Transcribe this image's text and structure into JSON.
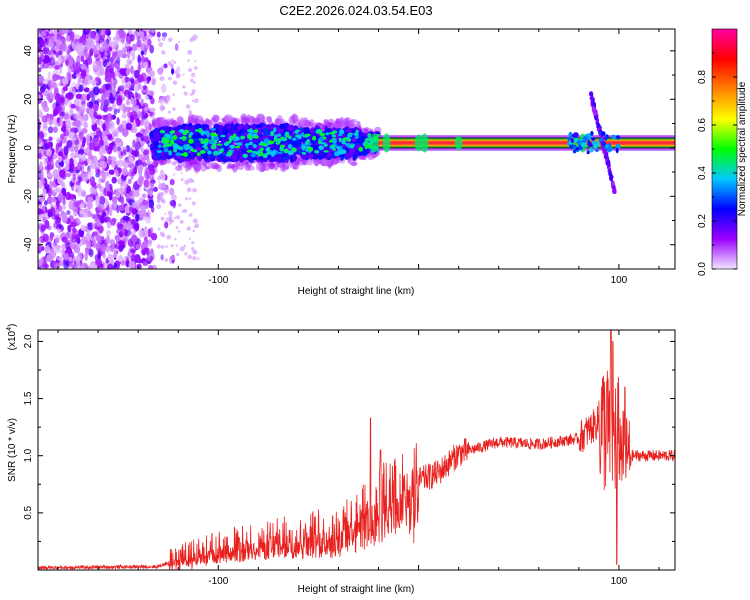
{
  "figure": {
    "title": "C2E2.2026.024.03.54.E03"
  },
  "colors": {
    "snr_line": "#e8211e",
    "trace_band": "#15b23a",
    "trace_core": "#ff2a3a",
    "axis": "#000000"
  },
  "chart_data": [
    {
      "type": "heatmap",
      "name": "spectrogram",
      "title": "C2E2.2026.024.03.54.E03",
      "xlabel": "Height of straight line (km)",
      "ylabel": "Frequency (Hz)",
      "xlim": [
        -190,
        128
      ],
      "ylim": [
        -50,
        49
      ],
      "xticks": [
        -100,
        0,
        100
      ],
      "xtick_labels": [
        "-100",
        "",
        "100"
      ],
      "yticks": [
        -40,
        -20,
        0,
        20,
        40
      ],
      "ytick_labels": [
        "-40",
        "-20",
        "0",
        "20",
        "40"
      ],
      "colorbar": {
        "label": "Normalized spectral amplitude",
        "range": [
          0,
          1
        ],
        "ticks": [
          0.0,
          0.2,
          0.4,
          0.6,
          0.8
        ],
        "tick_labels": [
          "0.0",
          "0.2",
          "0.4",
          "0.6",
          "0.8"
        ],
        "colormap": [
          "#f2e6ff",
          "#9b00ff",
          "#0000ff",
          "#00c8ff",
          "#00ff00",
          "#ffff00",
          "#ff8000",
          "#ff0000",
          "#ff00a0"
        ]
      },
      "trace": {
        "frequency_hz": 2,
        "x_start_km": -20,
        "x_end_km": 128,
        "amplitude": 1.0
      },
      "regions": [
        {
          "name": "noise",
          "x_range": [
            -190,
            -120
          ],
          "y_range": [
            -50,
            49
          ],
          "amplitude": 0.2
        },
        {
          "name": "onset",
          "x_range": [
            -133,
            -20
          ],
          "y_range": [
            -10,
            12
          ],
          "amplitude": 0.4
        },
        {
          "name": "burst",
          "x_range": [
            85,
            100
          ],
          "y_range": [
            -18,
            22
          ],
          "amplitude": 0.3
        }
      ]
    },
    {
      "type": "line",
      "name": "snr",
      "xlabel": "Height of straight line (km)",
      "ylabel": "SNR (10 * v/v)",
      "yscale_label": "(x10",
      "yscale_exp": "4",
      "yscale_close": ")",
      "xlim": [
        -190,
        128
      ],
      "ylim": [
        0,
        2.1
      ],
      "xticks": [
        -100,
        0,
        100
      ],
      "xtick_labels": [
        "-100",
        "",
        "100"
      ],
      "yticks": [
        0.5,
        1.0,
        1.5,
        2.0
      ],
      "ytick_labels": [
        "0.5",
        "1.0",
        "1.5",
        "2.0"
      ],
      "series": [
        {
          "name": "SNR",
          "x": [
            -190,
            -130,
            -120,
            -100,
            -80,
            -60,
            -40,
            -25,
            -20,
            -10,
            0,
            10,
            20,
            40,
            60,
            80,
            90,
            95,
            98,
            100,
            105,
            128
          ],
          "values": [
            0.02,
            0.03,
            0.1,
            0.2,
            0.25,
            0.3,
            0.35,
            0.55,
            0.6,
            0.7,
            0.78,
            0.85,
            1.02,
            1.12,
            1.1,
            1.15,
            1.3,
            1.2,
            1.2,
            1.1,
            1.0,
            1.0
          ]
        }
      ]
    }
  ]
}
